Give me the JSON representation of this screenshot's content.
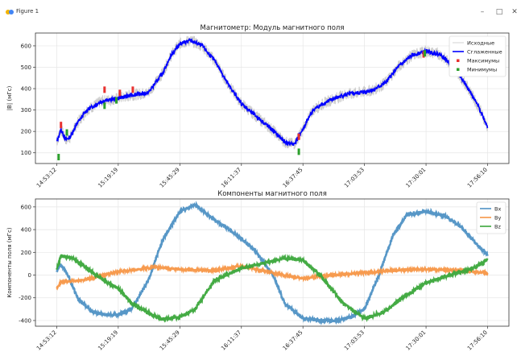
{
  "window": {
    "title": "Figure 1",
    "minimize_icon": "minimize-icon",
    "maximize_icon": "maximize-icon",
    "close_icon": "close-icon"
  },
  "colors": {
    "original": "#c8c8c8",
    "smoothed": "#0000ff",
    "maxima": "#e8312f",
    "minima": "#2ca02c",
    "bx": "#4e91c4",
    "by": "#f79646",
    "bz": "#3aa63a"
  },
  "chart_data": [
    {
      "type": "line",
      "title": "Магнитометр: Модуль магнитного поля",
      "ylabel": "|B| (мГс)",
      "xlabel": "",
      "x_ticks": [
        "14:53:12",
        "15:19:19",
        "15:45:29",
        "16:11:37",
        "16:37:45",
        "17:03:53",
        "17:30:01",
        "17:56:10"
      ],
      "y_ticks": [
        100,
        200,
        300,
        400,
        500,
        600
      ],
      "xlim": [
        "14:53:12",
        "17:56:10"
      ],
      "ylim": [
        50,
        660
      ],
      "grid": true,
      "legend": "top-right",
      "series": [
        {
          "name": "Исходные",
          "x": [
            "14:53:12",
            "14:55:00",
            "14:57:00",
            "14:59:00",
            "15:02:00",
            "15:06:00",
            "15:12:00",
            "15:19:19",
            "15:25:00",
            "15:32:00",
            "15:38:00",
            "15:42:00",
            "15:45:29",
            "15:50:00",
            "15:55:00",
            "16:01:00",
            "16:06:00",
            "16:11:37",
            "16:18:00",
            "16:25:00",
            "16:30:00",
            "16:34:00",
            "16:37:45",
            "16:42:00",
            "16:48:00",
            "16:55:00",
            "17:03:53",
            "17:08:00",
            "17:13:00",
            "17:18:00",
            "17:24:00",
            "17:30:01",
            "17:36:00",
            "17:42:00",
            "17:48:00",
            "17:53:00",
            "17:56:10"
          ],
          "values": [
            150,
            210,
            160,
            175,
            240,
            300,
            340,
            355,
            370,
            380,
            470,
            560,
            610,
            625,
            600,
            520,
            420,
            330,
            270,
            205,
            150,
            140,
            210,
            300,
            340,
            370,
            385,
            395,
            430,
            500,
            555,
            575,
            560,
            500,
            400,
            300,
            220
          ]
        },
        {
          "name": "Сглаженные",
          "x": [
            "14:53:12",
            "14:55:00",
            "14:57:00",
            "14:59:00",
            "15:02:00",
            "15:06:00",
            "15:12:00",
            "15:19:19",
            "15:25:00",
            "15:32:00",
            "15:38:00",
            "15:42:00",
            "15:45:29",
            "15:50:00",
            "15:55:00",
            "16:01:00",
            "16:06:00",
            "16:11:37",
            "16:18:00",
            "16:25:00",
            "16:30:00",
            "16:34:00",
            "16:37:45",
            "16:42:00",
            "16:48:00",
            "16:55:00",
            "17:03:53",
            "17:08:00",
            "17:13:00",
            "17:18:00",
            "17:24:00",
            "17:30:01",
            "17:36:00",
            "17:42:00",
            "17:48:00",
            "17:53:00",
            "17:56:10"
          ],
          "values": [
            150,
            210,
            160,
            175,
            240,
            300,
            340,
            355,
            370,
            380,
            470,
            560,
            610,
            625,
            600,
            520,
            420,
            330,
            270,
            205,
            150,
            140,
            210,
            300,
            340,
            370,
            385,
            395,
            430,
            500,
            555,
            575,
            560,
            500,
            400,
            300,
            220
          ]
        },
        {
          "name": "Максимумы",
          "x": [
            "14:55:00",
            "15:13:30",
            "15:20:00",
            "15:25:30",
            "16:36:00",
            "17:29:00"
          ],
          "values": [
            230,
            395,
            380,
            395,
            175,
            560
          ]
        },
        {
          "name": "Минимумы",
          "x": [
            "14:54:00",
            "14:57:30",
            "15:13:30",
            "15:18:30",
            "16:36:00",
            "17:29:30"
          ],
          "values": [
            80,
            195,
            320,
            345,
            105,
            565
          ]
        }
      ]
    },
    {
      "type": "line",
      "title": "Компоненты магнитного поля",
      "ylabel": "Компоненты поля (мГс)",
      "xlabel": "",
      "x_ticks": [
        "14:53:12",
        "15:19:19",
        "15:45:29",
        "16:11:37",
        "16:37:45",
        "17:03:53",
        "17:30:01",
        "17:56:10"
      ],
      "y_ticks": [
        -400,
        -200,
        0,
        200,
        400,
        600
      ],
      "xlim": [
        "14:53:12",
        "17:56:10"
      ],
      "ylim": [
        -450,
        670
      ],
      "grid": true,
      "legend": "top-right",
      "series": [
        {
          "name": "Bx",
          "x": [
            "14:53:12",
            "14:55:00",
            "14:58:00",
            "15:02:00",
            "15:08:00",
            "15:14:00",
            "15:19:19",
            "15:25:00",
            "15:32:00",
            "15:38:00",
            "15:45:29",
            "15:52:00",
            "15:58:00",
            "16:05:00",
            "16:11:37",
            "16:18:00",
            "16:25:00",
            "16:30:00",
            "16:37:45",
            "16:45:00",
            "16:52:00",
            "16:58:00",
            "17:03:53",
            "17:10:00",
            "17:16:00",
            "17:22:00",
            "17:30:01",
            "17:38:00",
            "17:45:00",
            "17:52:00",
            "17:56:10"
          ],
          "values": [
            40,
            90,
            0,
            -200,
            -320,
            -350,
            -350,
            -300,
            -50,
            300,
            560,
            620,
            520,
            420,
            320,
            200,
            0,
            -250,
            -380,
            -400,
            -400,
            -370,
            -300,
            0,
            350,
            530,
            560,
            520,
            420,
            260,
            180
          ]
        },
        {
          "name": "By",
          "x": [
            "14:53:12",
            "14:55:00",
            "15:05:00",
            "15:19:19",
            "15:35:00",
            "15:45:29",
            "16:00:00",
            "16:11:37",
            "16:25:00",
            "16:37:45",
            "16:50:00",
            "17:03:53",
            "17:15:00",
            "17:30:01",
            "17:45:00",
            "17:56:10"
          ],
          "values": [
            -120,
            -60,
            -40,
            30,
            70,
            50,
            40,
            80,
            20,
            -30,
            0,
            20,
            40,
            50,
            40,
            20
          ]
        },
        {
          "name": "Bz",
          "x": [
            "14:53:12",
            "14:55:00",
            "15:00:00",
            "15:06:00",
            "15:12:00",
            "15:19:19",
            "15:25:00",
            "15:32:00",
            "15:38:00",
            "15:45:29",
            "15:52:00",
            "16:00:00",
            "16:11:37",
            "16:20:00",
            "16:30:00",
            "16:37:45",
            "16:45:00",
            "16:55:00",
            "17:03:53",
            "17:12:00",
            "17:20:00",
            "17:30:01",
            "17:40:00",
            "17:50:00",
            "17:56:10"
          ],
          "values": [
            50,
            170,
            150,
            60,
            -30,
            -120,
            -250,
            -330,
            -390,
            -370,
            -300,
            -50,
            60,
            100,
            150,
            130,
            0,
            -250,
            -380,
            -330,
            -200,
            -70,
            0,
            60,
            140
          ]
        }
      ]
    }
  ]
}
